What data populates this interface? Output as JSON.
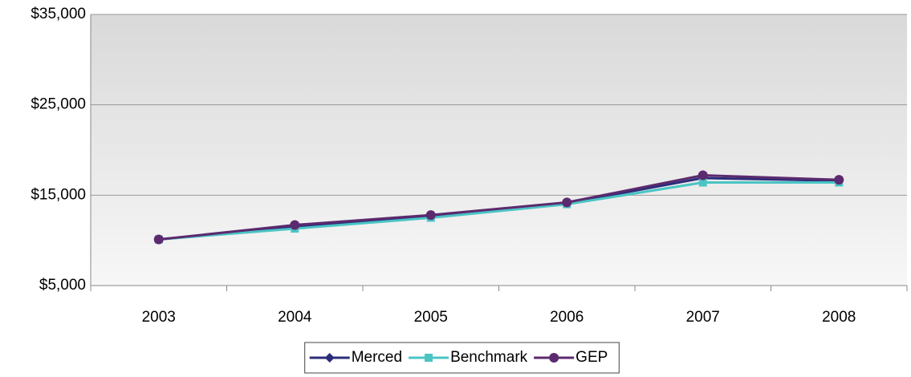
{
  "chart_data": {
    "type": "line",
    "categories": [
      "2003",
      "2004",
      "2005",
      "2006",
      "2007",
      "2008"
    ],
    "series": [
      {
        "name": "Merced",
        "color": "#2b2d7a",
        "marker": "diamond",
        "values": [
          10100,
          11500,
          12700,
          14100,
          16900,
          16600
        ]
      },
      {
        "name": "Benchmark",
        "color": "#4bc4c4",
        "marker": "square",
        "values": [
          10100,
          11300,
          12500,
          14000,
          16400,
          16400
        ]
      },
      {
        "name": "GEP",
        "color": "#5c2a6e",
        "marker": "circle",
        "values": [
          10100,
          11700,
          12800,
          14200,
          17200,
          16700
        ]
      }
    ],
    "ylim": [
      5000,
      35000
    ],
    "yticks": [
      {
        "value": 5000,
        "label": "$5,000"
      },
      {
        "value": 15000,
        "label": "$15,000"
      },
      {
        "value": 25000,
        "label": "$25,000"
      },
      {
        "value": 35000,
        "label": "$35,000"
      }
    ],
    "grid": true,
    "legend": "bottom"
  }
}
